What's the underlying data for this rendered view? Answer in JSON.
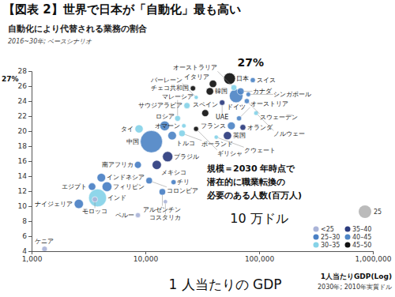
{
  "chart_data": {
    "type": "scatter",
    "title": "【図表 2】世界で日本が「自動化」最も高い",
    "subtitle": "自動化により代替される業務の割合",
    "note": "2016~30年; ベースシナリオ",
    "x_label": "1 人当たりの GDP",
    "x_axis_title": "1人当たりGDP(Log)",
    "x_axis_note": "2030年; 2010年実質ドル",
    "annotations": [
      {
        "text": "27%",
        "x": 55000,
        "y": 27
      },
      {
        "text": "10 万ドル",
        "x": 100000
      }
    ],
    "y_marker": {
      "value": 27,
      "label": "27%"
    },
    "size_title": [
      "規模＝2030 年時点で",
      "潜在的に職業転換の",
      "必要のある人数(百万人)"
    ],
    "size_legend": 25,
    "log": "x",
    "grid": false,
    "legend": "bottom-right",
    "xlim": [
      1000,
      1000000
    ],
    "xticks": [
      {
        "value": 1000,
        "label": "1,000"
      },
      {
        "value": 10000,
        "label": "10,000"
      },
      {
        "value": 100000,
        "label": "100,000"
      },
      {
        "value": 1000000,
        "label": "1,000,000"
      }
    ],
    "ylim": [
      4,
      28
    ],
    "yticks": [
      4,
      6,
      8,
      10,
      12,
      14,
      16,
      18,
      20,
      22,
      24,
      26,
      28
    ],
    "series": [
      {
        "name": "<25",
        "color": "#aab4d8",
        "labels": [
          "モロッコ",
          "ペルー",
          "コスタリカ",
          "ケニア"
        ],
        "x": [
          3600,
          8600,
          15000,
          1300
        ],
        "values": [
          10.9,
          8.8,
          10.6,
          4.3
        ],
        "size": [
          1.5,
          1,
          0.3,
          1.5
        ]
      },
      {
        "name": "25–30",
        "color": "#4a80c4",
        "labels": [
          "インドネシア",
          "エジプト",
          "フィリピン",
          "南アフリカ",
          "コロンビア",
          "チリ",
          "アルゼンチン",
          "ナイジェリア"
        ],
        "x": [
          4100,
          3400,
          4600,
          8600,
          10800,
          17700,
          14100,
          2600
        ],
        "values": [
          13.8,
          12.6,
          12.6,
          15.5,
          13.4,
          13.2,
          11.9,
          10.3
        ],
        "size": [
          8,
          5,
          12,
          4,
          3,
          1,
          3,
          10
        ]
      },
      {
        "name": "30–35",
        "color": "#86d3e8",
        "labels": [
          "インド",
          "タイ",
          "マレーシア",
          "オーストラリア",
          "ノルウェー",
          "サウジアラビア",
          "バーレーン",
          "クウェート",
          "ポーランド",
          "オマーン"
        ],
        "x": [
          3800,
          8800,
          19200,
          60000,
          94000,
          23200,
          28000,
          42000,
          21000,
          21800
        ],
        "values": [
          11.1,
          20.3,
          21.7,
          25.8,
          22.4,
          23.4,
          24.5,
          19.2,
          19.7,
          20.7
        ],
        "size": [
          60,
          7,
          2,
          2,
          0.5,
          2.5,
          0.2,
          0.3,
          3,
          0.4
        ]
      },
      {
        "name": "35–40",
        "color": "#2c3c7e",
        "labels": [
          "英国",
          "オランダ",
          "UAE",
          "ブラジル",
          "メキシコ"
        ],
        "x": [
          52700,
          72000,
          47300,
          15700,
          12600
        ],
        "values": [
          19.4,
          20.5,
          23.8,
          16.6,
          15.5
        ],
        "size": [
          7,
          2,
          1.5,
          14,
          10
        ]
      },
      {
        "name": "40–45",
        "color": "#4f86c6",
        "labels": [
          "ドイツ",
          "フランス",
          "オーストリア",
          "スイス",
          "カナダ",
          "シンガポール",
          "スウェーデン",
          "ロシア",
          "トルコ",
          "中国"
        ],
        "x": [
          62800,
          57000,
          66600,
          88000,
          68800,
          80400,
          78000,
          14800,
          17200,
          11300
        ],
        "values": [
          24.7,
          20.7,
          21.7,
          26.8,
          25.3,
          24.9,
          24.0,
          20.7,
          19.4,
          18.6
        ],
        "size": [
          30,
          6,
          1,
          1,
          4,
          0.6,
          1,
          12,
          8,
          100
        ]
      },
      {
        "name": "45–50",
        "color": "#111111",
        "labels": [
          "日本",
          "韓国",
          "イタリア",
          "チェコ共和国",
          "スペイン",
          "ギリシャ"
        ],
        "x": [
          55000,
          36900,
          39300,
          26200,
          33600,
          27900
        ],
        "values": [
          27,
          25.3,
          26.3,
          25.7,
          22.4,
          20.3
        ],
        "size": [
          20,
          5,
          5,
          1.2,
          4,
          0.9
        ]
      }
    ]
  }
}
